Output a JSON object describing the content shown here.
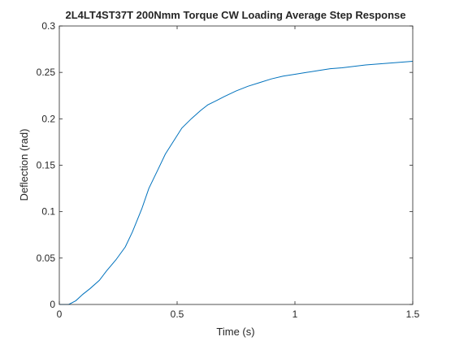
{
  "chart_data": {
    "type": "line",
    "title": "2L4LT4ST37T 200Nmm Torque CW Loading Average Step Response",
    "xlabel": "Time (s)",
    "ylabel": "Deflection (rad)",
    "xlim": [
      0,
      1.5
    ],
    "ylim": [
      0,
      0.3
    ],
    "xticks": [
      0,
      0.5,
      1,
      1.5
    ],
    "xtick_labels": [
      "0",
      "0.5",
      "1",
      "1.5"
    ],
    "yticks": [
      0,
      0.05,
      0.1,
      0.15,
      0.2,
      0.25,
      0.3
    ],
    "ytick_labels": [
      "0",
      "0.05",
      "0.1",
      "0.15",
      "0.2",
      "0.25",
      "0.3"
    ],
    "grid": false,
    "line_color": "#0072BD",
    "series": [
      {
        "x": [
          0,
          0.04,
          0.07,
          0.1,
          0.13,
          0.17,
          0.2,
          0.24,
          0.28,
          0.31,
          0.35,
          0.38,
          0.42,
          0.45,
          0.49,
          0.52,
          0.56,
          0.6,
          0.63,
          0.67,
          0.7,
          0.75,
          0.8,
          0.85,
          0.9,
          0.95,
          1.0,
          1.05,
          1.1,
          1.15,
          1.2,
          1.3,
          1.4,
          1.5
        ],
        "y": [
          0,
          0.0,
          0.004,
          0.011,
          0.017,
          0.026,
          0.036,
          0.048,
          0.062,
          0.078,
          0.103,
          0.125,
          0.146,
          0.162,
          0.178,
          0.19,
          0.2,
          0.209,
          0.215,
          0.22,
          0.224,
          0.23,
          0.235,
          0.239,
          0.243,
          0.246,
          0.248,
          0.25,
          0.252,
          0.254,
          0.255,
          0.258,
          0.26,
          0.262
        ]
      }
    ]
  }
}
